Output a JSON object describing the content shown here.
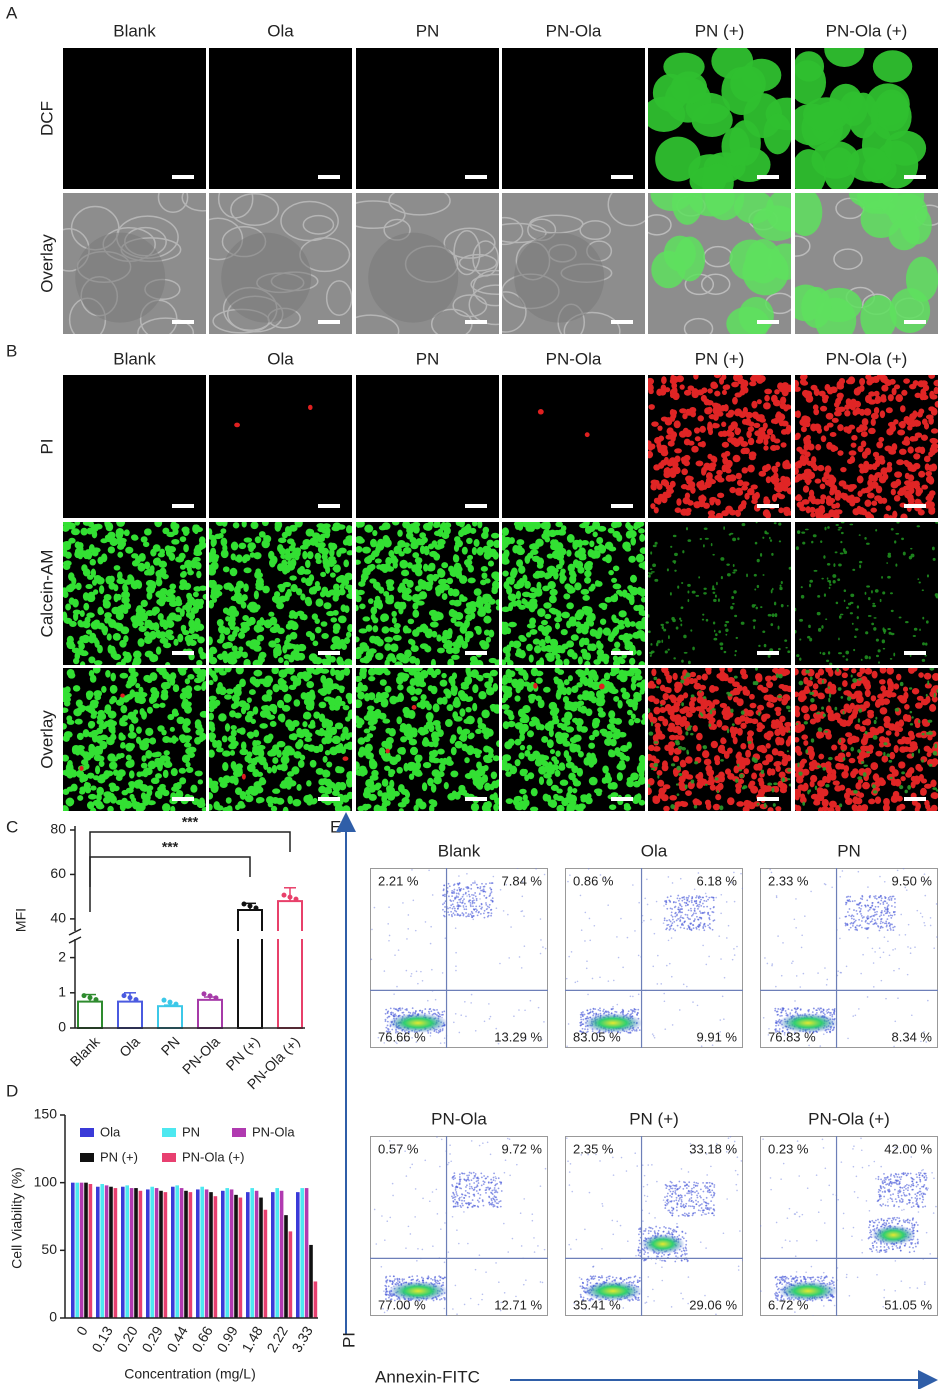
{
  "panel_labels": [
    "A",
    "B",
    "C",
    "D",
    "E"
  ],
  "imaging_a": {
    "columns": [
      "Blank",
      "Ola",
      "PN",
      "PN-Ola",
      "PN (+)",
      "PN-Ola (+)"
    ],
    "rows": [
      "DCF",
      "Overlay"
    ]
  },
  "imaging_b": {
    "columns": [
      "Blank",
      "Ola",
      "PN",
      "PN-Ola",
      "PN (+)",
      "PN-Ola (+)"
    ],
    "rows": [
      "PI",
      "Calcein-AM",
      "Overlay"
    ]
  },
  "chart_data": [
    {
      "type": "bar",
      "ylabel": "MFI",
      "categories": [
        "Blank",
        "Ola",
        "PN",
        "PN-Ola",
        "PN (+)",
        "PN-Ola (+)"
      ],
      "values": [
        0.75,
        0.75,
        0.62,
        0.8,
        44,
        48
      ],
      "errors": [
        0.2,
        0.25,
        0.03,
        0.08,
        3,
        6
      ],
      "colors": [
        "#2e8b2e",
        "#4a5ae0",
        "#3cc8e8",
        "#a63aa8",
        "#111111",
        "#e8406a"
      ],
      "ylim": [
        0,
        80
      ],
      "ybreak": [
        2.5,
        35
      ],
      "yticks": [
        0,
        1,
        2,
        40,
        60,
        80
      ],
      "annotations": [
        {
          "text": "***",
          "between": [
            "Blank",
            "PN-Ola (+)"
          ]
        },
        {
          "text": "***",
          "between": [
            "Blank",
            "PN (+)"
          ]
        }
      ]
    },
    {
      "type": "grouped_bar",
      "xlabel": "Concentration (mg/L)",
      "ylabel": "Cell Viability (%)",
      "categories": [
        "0",
        "0.13",
        "0.20",
        "0.29",
        "0.44",
        "0.66",
        "0.99",
        "1.48",
        "2.22",
        "3.33"
      ],
      "series": [
        {
          "name": "Ola",
          "color": "#3a3ad8",
          "values": [
            100,
            97,
            97,
            95,
            97,
            95,
            94,
            93,
            93,
            93
          ]
        },
        {
          "name": "PN",
          "color": "#4de8f0",
          "values": [
            100,
            99,
            98,
            97,
            98,
            97,
            96,
            96,
            96,
            96
          ]
        },
        {
          "name": "PN-Ola",
          "color": "#b03ab0",
          "values": [
            100,
            98,
            96,
            96,
            96,
            95,
            95,
            94,
            94,
            96
          ]
        },
        {
          "name": "PN (+)",
          "color": "#111111",
          "values": [
            100,
            97,
            96,
            94,
            94,
            93,
            91,
            89,
            76,
            54
          ]
        },
        {
          "name": "PN-Ola (+)",
          "color": "#e84070",
          "values": [
            99,
            96,
            94,
            93,
            93,
            90,
            89,
            80,
            64,
            27
          ]
        }
      ],
      "ylim": [
        0,
        150
      ],
      "yticks": [
        0,
        50,
        100,
        150
      ]
    }
  ],
  "flow": {
    "xlabel": "Annexin-FITC",
    "ylabel": "PI",
    "plots": [
      {
        "title": "Blank",
        "quadrants": [
          "2.21 %",
          "7.84 %",
          "76.66 %",
          "13.29 %"
        ]
      },
      {
        "title": "Ola",
        "quadrants": [
          "0.86 %",
          "6.18 %",
          "83.05 %",
          "9.91 %"
        ]
      },
      {
        "title": "PN",
        "quadrants": [
          "2.33 %",
          "9.50 %",
          "76.83 %",
          "8.34 %"
        ]
      },
      {
        "title": "PN-Ola",
        "quadrants": [
          "0.57 %",
          "9.72 %",
          "77.00 %",
          "12.71 %"
        ]
      },
      {
        "title": "PN (+)",
        "quadrants": [
          "2.35 %",
          "33.18 %",
          "35.41 %",
          "29.06 %"
        ]
      },
      {
        "title": "PN-Ola (+)",
        "quadrants": [
          "0.23 %",
          "42.00 %",
          "6.72 %",
          "51.05 %"
        ]
      }
    ]
  }
}
